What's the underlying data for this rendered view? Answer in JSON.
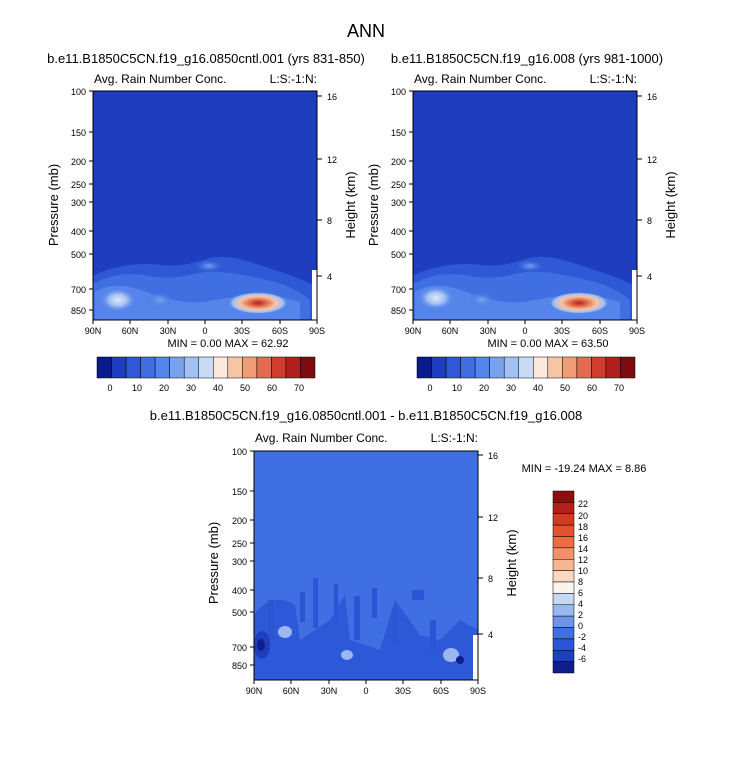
{
  "page_title": "ANN",
  "chart_data": [
    {
      "type": "heatmap",
      "title": "b.e11.B1850C5CN.f19_g16.0850cntl.001 (yrs 831-850)",
      "left_label": "Avg. Rain Number Conc.",
      "right_label": "L:S:-1:N:",
      "xlabel": "",
      "ylabel": "Pressure (mb)",
      "y2label": "Height (km)",
      "x_ticks": [
        "90N",
        "60N",
        "30N",
        "0",
        "30S",
        "60S",
        "90S"
      ],
      "y_ticks": [
        "100",
        "150",
        "200",
        "250",
        "300",
        "400",
        "500",
        "700",
        "850"
      ],
      "y2_ticks": [
        "16",
        "12",
        "8",
        "4"
      ],
      "stats": "MIN =  0.00  MAX = 62.92",
      "colorbar_levels": [
        "0",
        "10",
        "20",
        "30",
        "40",
        "50",
        "60",
        "70"
      ],
      "colorbar_colors": [
        "#0a1a8c",
        "#1f3dbf",
        "#2e58d6",
        "#3f6fe0",
        "#5585ea",
        "#7aa3ef",
        "#a3c0f2",
        "#c9dbf5",
        "#fbe9dd",
        "#f5c5a6",
        "#ef9d78",
        "#e26d4e",
        "#cf3e2c",
        "#b0201a",
        "#7d0d0d"
      ],
      "min": 0.0,
      "max": 62.92
    },
    {
      "type": "heatmap",
      "title": "b.e11.B1850C5CN.f19_g16.008 (yrs 981-1000)",
      "left_label": "Avg. Rain Number Conc.",
      "right_label": "L:S:-1:N:",
      "xlabel": "",
      "ylabel": "Pressure (mb)",
      "y2label": "Height (km)",
      "x_ticks": [
        "90N",
        "60N",
        "30N",
        "0",
        "30S",
        "60S",
        "90S"
      ],
      "y_ticks": [
        "100",
        "150",
        "200",
        "250",
        "300",
        "400",
        "500",
        "700",
        "850"
      ],
      "y2_ticks": [
        "16",
        "12",
        "8",
        "4"
      ],
      "stats": "MIN =  0.00  MAX = 63.50",
      "colorbar_levels": [
        "0",
        "10",
        "20",
        "30",
        "40",
        "50",
        "60",
        "70"
      ],
      "colorbar_colors": [
        "#0a1a8c",
        "#1f3dbf",
        "#2e58d6",
        "#3f6fe0",
        "#5585ea",
        "#7aa3ef",
        "#a3c0f2",
        "#c9dbf5",
        "#fbe9dd",
        "#f5c5a6",
        "#ef9d78",
        "#e26d4e",
        "#cf3e2c",
        "#b0201a",
        "#7d0d0d"
      ],
      "min": 0.0,
      "max": 63.5
    },
    {
      "type": "heatmap",
      "title": "b.e11.B1850C5CN.f19_g16.0850cntl.001 - b.e11.B1850C5CN.f19_g16.008",
      "left_label": "Avg. Rain Number Conc.",
      "right_label": "L:S:-1:N:",
      "xlabel": "",
      "ylabel": "Pressure (mb)",
      "y2label": "Height (km)",
      "x_ticks": [
        "90N",
        "60N",
        "30N",
        "0",
        "30S",
        "60S",
        "90S"
      ],
      "y_ticks": [
        "100",
        "150",
        "200",
        "250",
        "300",
        "400",
        "500",
        "700",
        "850"
      ],
      "y2_ticks": [
        "16",
        "12",
        "8",
        "4"
      ],
      "stats": "MIN = -19.24  MAX =  8.86",
      "colorbar_levels": [
        "22",
        "20",
        "18",
        "16",
        "14",
        "12",
        "10",
        "8",
        "6",
        "4",
        "2",
        "0",
        "-2",
        "-4",
        "-6"
      ],
      "colorbar_colors": [
        "#8f0d0d",
        "#b3201a",
        "#d23a22",
        "#e2522e",
        "#ec6c44",
        "#f29067",
        "#f7b593",
        "#fbd8c2",
        "#fbf4ee",
        "#c6d8f5",
        "#9ab8f0",
        "#6f95ea",
        "#3f6fe2",
        "#2a56d6",
        "#1e3fbd",
        "#0e1e8e"
      ],
      "min": -19.24,
      "max": 8.86
    }
  ]
}
